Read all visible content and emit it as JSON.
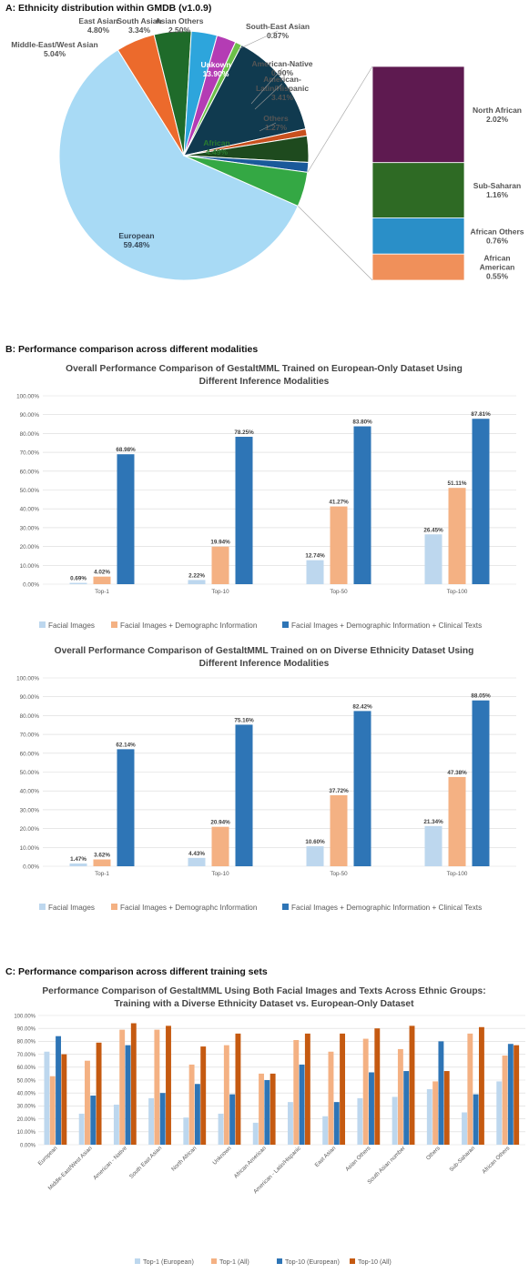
{
  "section_a": {
    "title": "A: Ethnicity distribution within GMDB (v1.0.9)"
  },
  "section_b": {
    "title": "B: Performance comparison across different modalities"
  },
  "section_c": {
    "title": "C: Performance comparison across different training sets"
  },
  "colors": {
    "european": "#a8daf5",
    "middle_east": "#ec6a2c",
    "east_asian": "#1f6b2a",
    "south_asian": "#2da5dc",
    "asian_others": "#b43cb4",
    "south_east_asian": "#6cc04a",
    "unknown": "#103a4f",
    "american_native": "#c8501e",
    "american_latin": "#1e4a1e",
    "others": "#1a5a9a",
    "african": "#34a844",
    "north_african": "#5e1a50",
    "sub_saharan": "#2e6a24",
    "african_others": "#2a8fc8",
    "african_american": "#f0905a",
    "face": "#bdd7ee",
    "face_demo": "#f4b183",
    "face_demo_text": "#2e75b6",
    "top1_eu": "#bdd7ee",
    "top1_all": "#f4b183",
    "top10_eu": "#2e75b6",
    "top10_all": "#c55a11"
  },
  "chart_data": [
    {
      "type": "pie",
      "labels": [
        "European",
        "Middle-East/West Asian",
        "East Asian",
        "South Asian",
        "Asian Others",
        "South-East Asian",
        "Unkown",
        "American-Native",
        "American-Latin/Hispanic",
        "Others",
        "African"
      ],
      "display_labels": [
        [
          "European",
          "59.48%"
        ],
        [
          "Middle-East/West Asian",
          "5.04%"
        ],
        [
          "East Asian",
          "4.80%"
        ],
        [
          "South Asian",
          "3.34%"
        ],
        [
          "Asian Others",
          "2.50%"
        ],
        [
          "South-East Asian",
          "0.87%"
        ],
        [
          "Unkown",
          "13.90%"
        ],
        [
          "American-Native",
          "0.90%"
        ],
        [
          "American-",
          "Latin/Hispanic",
          "3.41%"
        ],
        [
          "Others",
          "1.27%"
        ],
        [
          "African",
          "4.49%"
        ]
      ],
      "values": [
        59.48,
        5.04,
        4.8,
        3.34,
        2.5,
        0.87,
        13.9,
        0.9,
        3.41,
        1.27,
        4.49
      ],
      "breakdown": {
        "of": "African",
        "labels": [
          "North African",
          "Sub-Saharan",
          "African Others",
          "African American"
        ],
        "display_labels": [
          [
            "North African",
            "2.02%"
          ],
          [
            "Sub-Saharan",
            "1.16%"
          ],
          [
            "African Others",
            "0.76%"
          ],
          [
            "African",
            "American",
            "0.55%"
          ]
        ],
        "values": [
          2.02,
          1.16,
          0.76,
          0.55
        ]
      }
    },
    {
      "type": "bar",
      "title": "Overall Performance Comparison of GestaltMML Trained on European-Only Dataset Using",
      "title_line2": "Different Inference Modalities",
      "categories": [
        "Top-1",
        "Top-10",
        "Top-50",
        "Top-100"
      ],
      "series": [
        {
          "name": "Facial Images",
          "values": [
            0.69,
            2.22,
            12.74,
            26.45
          ]
        },
        {
          "name": "Facial Images + Demographc Information",
          "values": [
            4.02,
            19.94,
            41.27,
            51.11
          ]
        },
        {
          "name": "Facial Images + Demographic Information + Clinical Texts",
          "values": [
            68.98,
            78.25,
            83.8,
            87.81
          ]
        }
      ],
      "ylim": [
        0,
        100
      ],
      "yticks": [
        "0.00%",
        "10.00%",
        "20.00%",
        "30.00%",
        "40.00%",
        "50.00%",
        "60.00%",
        "70.00%",
        "80.00%",
        "90.00%",
        "100.00%"
      ],
      "data_labels": [
        [
          "0.69%",
          "2.22%",
          "12.74%",
          "26.45%"
        ],
        [
          "4.02%",
          "19.94%",
          "41.27%",
          "51.11%"
        ],
        [
          "68.98%",
          "78.25%",
          "83.80%",
          "87.81%"
        ]
      ],
      "legend": "bottom"
    },
    {
      "type": "bar",
      "title": "Overall Performance Comparison of GestaltMML Trained on on Diverse Ethnicity Dataset Using",
      "title_line2": "Different Inference Modalities",
      "categories": [
        "Top-1",
        "Top-10",
        "Top-50",
        "Top-100"
      ],
      "series": [
        {
          "name": "Facial Images",
          "values": [
            1.47,
            4.43,
            10.6,
            21.34
          ]
        },
        {
          "name": "Facial Images + Demographc Information",
          "values": [
            3.62,
            20.94,
            37.72,
            47.38
          ]
        },
        {
          "name": "Facial Images + Demographic Information + Clinical Texts",
          "values": [
            62.14,
            75.16,
            82.42,
            88.05
          ]
        }
      ],
      "ylim": [
        0,
        100
      ],
      "yticks": [
        "0.00%",
        "10.00%",
        "20.00%",
        "30.00%",
        "40.00%",
        "50.00%",
        "60.00%",
        "70.00%",
        "80.00%",
        "90.00%",
        "100.00%"
      ],
      "data_labels": [
        [
          "1.47%",
          "4.43%",
          "10.60%",
          "21.34%"
        ],
        [
          "3.62%",
          "20.94%",
          "37.72%",
          "47.38%"
        ],
        [
          "62.14%",
          "75.16%",
          "82.42%",
          "88.05%"
        ]
      ],
      "legend": "bottom"
    },
    {
      "type": "bar",
      "title": "Performance Comparison of GestaltMML Using Both Facial Images and Texts Across Ethnic Groups:",
      "title_line2": "Training with a Diverse Ethnicity Dataset vs. European-Only Dataset",
      "categories": [
        "European",
        "Middle-East/West Asian",
        "American - Native",
        "South East Asian",
        "North African",
        "Unknown",
        "African American",
        "American - Latin/Hispanic",
        "East Asian",
        "Asian Others",
        "South Asian number",
        "Others",
        "Sub-Saharan",
        "African Others"
      ],
      "series": [
        {
          "name": "Top-1 (European)",
          "values": [
            72,
            24,
            31,
            36,
            21,
            24,
            17,
            33,
            22,
            36,
            37,
            43,
            25,
            49
          ]
        },
        {
          "name": "Top-1 (All)",
          "values": [
            53,
            65,
            89,
            89,
            62,
            77,
            55,
            81,
            72,
            82,
            74,
            49,
            86,
            69
          ]
        },
        {
          "name": "Top-10 (European)",
          "values": [
            84,
            38,
            77,
            40,
            47,
            39,
            50,
            62,
            33,
            56,
            57,
            80,
            39,
            78
          ]
        },
        {
          "name": "Top-10 (All)",
          "values": [
            70,
            79,
            94,
            92,
            76,
            86,
            55,
            86,
            86,
            90,
            92,
            57,
            91,
            77
          ]
        }
      ],
      "ylim": [
        0,
        100
      ],
      "yticks": [
        "0.00%",
        "10.00%",
        "20.00%",
        "30.00%",
        "40.00%",
        "50.00%",
        "60.00%",
        "70.00%",
        "80.00%",
        "90.00%",
        "100.00%"
      ],
      "legend": "bottom"
    }
  ]
}
